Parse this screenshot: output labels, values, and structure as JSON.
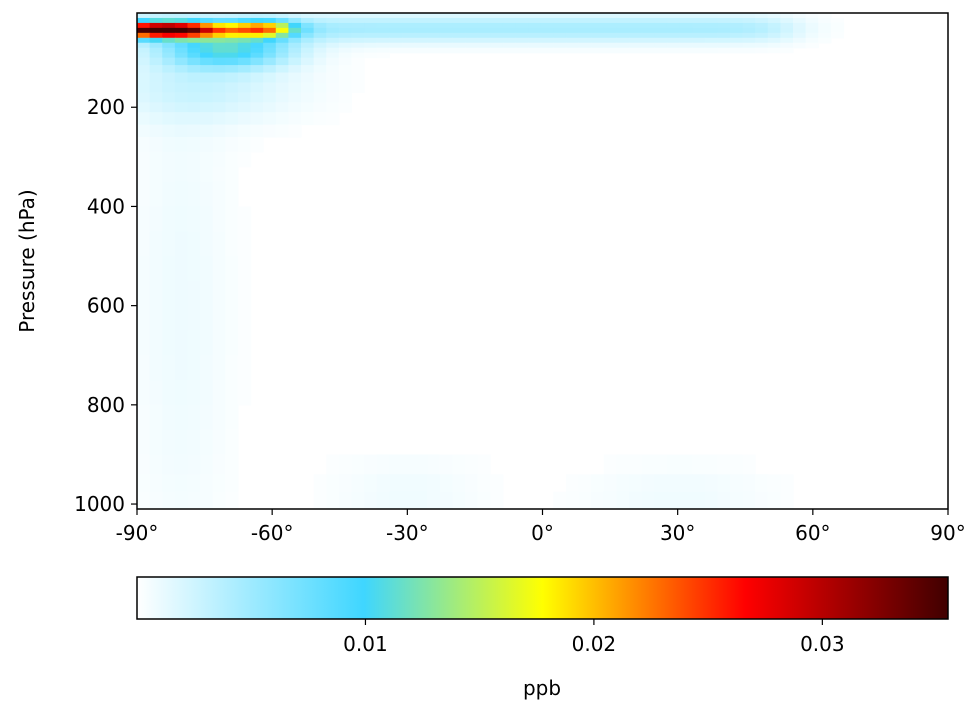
{
  "chart_data": {
    "type": "heatmap",
    "title": "",
    "xlabel": "",
    "ylabel": "Pressure (hPa)",
    "xlim": [
      -90,
      90
    ],
    "ylim": [
      1010,
      10
    ],
    "y_inverted": true,
    "grid": false,
    "x_ticks": [
      {
        "value": -90,
        "label": "-90°"
      },
      {
        "value": -60,
        "label": "-60°"
      },
      {
        "value": -30,
        "label": "-30°"
      },
      {
        "value": 0,
        "label": "0°"
      },
      {
        "value": 30,
        "label": "30°"
      },
      {
        "value": 60,
        "label": "60°"
      },
      {
        "value": 90,
        "label": "90°"
      }
    ],
    "y_ticks": [
      {
        "value": 200,
        "label": "200"
      },
      {
        "value": 400,
        "label": "400"
      },
      {
        "value": 600,
        "label": "600"
      },
      {
        "value": 800,
        "label": "800"
      },
      {
        "value": 1000,
        "label": "1000"
      }
    ],
    "colorbar": {
      "label": "ppb",
      "range": [
        0,
        0.0355
      ],
      "ticks": [
        {
          "value": 0.01,
          "label": "0.01"
        },
        {
          "value": 0.02,
          "label": "0.02"
        },
        {
          "value": 0.03,
          "label": "0.03"
        }
      ],
      "colormap": [
        "#ffffff",
        "#3fd6ff",
        "#ffff00",
        "#ff0000",
        "#400000"
      ],
      "colormap_stops": [
        0,
        0.28,
        0.5,
        0.75,
        1.0
      ]
    },
    "hotspots": [
      {
        "name": "polar-stratosphere-max",
        "lat": -80,
        "pressure": 40,
        "value": 0.034
      },
      {
        "name": "polar-stratosphere-band",
        "lat": -70,
        "pressure": 60,
        "value": 0.024
      },
      {
        "name": "midlat-stratosphere",
        "lat": -62,
        "pressure": 45,
        "value": 0.018
      },
      {
        "name": "upper-layer-spread",
        "lat": 0,
        "pressure": 40,
        "value": 0.004
      }
    ]
  }
}
